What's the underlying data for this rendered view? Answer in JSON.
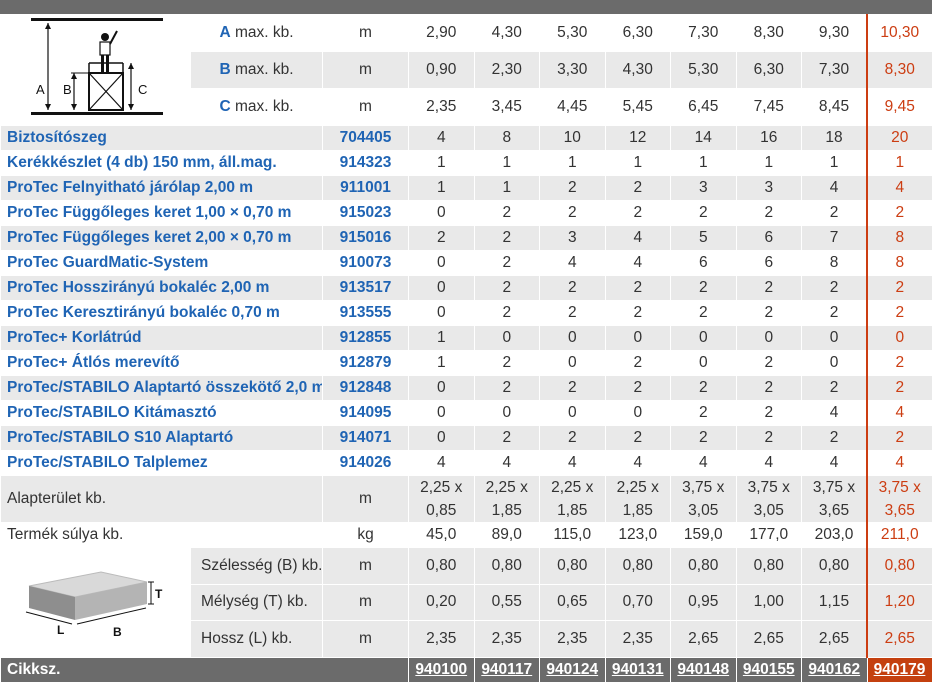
{
  "header_dims": [
    {
      "letter": "A",
      "suffix": " max. kb.",
      "unit": "m",
      "values": [
        "2,90",
        "4,30",
        "5,30",
        "6,30",
        "7,30",
        "8,30",
        "9,30",
        "10,30"
      ]
    },
    {
      "letter": "B",
      "suffix": " max. kb.",
      "unit": "m",
      "values": [
        "0,90",
        "2,30",
        "3,30",
        "4,30",
        "5,30",
        "6,30",
        "7,30",
        "8,30"
      ]
    },
    {
      "letter": "C",
      "suffix": " max. kb.",
      "unit": "m",
      "values": [
        "2,35",
        "3,45",
        "4,45",
        "5,45",
        "6,45",
        "7,45",
        "8,45",
        "9,45"
      ]
    }
  ],
  "scaffold_labels": {
    "a": "A",
    "b": "B",
    "c": "C"
  },
  "components": [
    {
      "name": "Biztosítószeg",
      "code": "704405",
      "values": [
        "4",
        "8",
        "10",
        "12",
        "14",
        "16",
        "18",
        "20"
      ]
    },
    {
      "name": "Kerékkészlet (4 db) 150 mm, áll.mag.",
      "code": "914323",
      "values": [
        "1",
        "1",
        "1",
        "1",
        "1",
        "1",
        "1",
        "1"
      ]
    },
    {
      "name": "ProTec Felnyitható járólap 2,00 m",
      "code": "911001",
      "values": [
        "1",
        "1",
        "2",
        "2",
        "3",
        "3",
        "4",
        "4"
      ]
    },
    {
      "name": "ProTec Függőleges keret 1,00 × 0,70 m",
      "code": "915023",
      "values": [
        "0",
        "2",
        "2",
        "2",
        "2",
        "2",
        "2",
        "2"
      ]
    },
    {
      "name": "ProTec Függőleges keret 2,00 × 0,70 m",
      "code": "915016",
      "values": [
        "2",
        "2",
        "3",
        "4",
        "5",
        "6",
        "7",
        "8"
      ]
    },
    {
      "name": "ProTec GuardMatic-System",
      "code": "910073",
      "values": [
        "0",
        "2",
        "4",
        "4",
        "6",
        "6",
        "8",
        "8"
      ]
    },
    {
      "name": "ProTec Hosszirányú bokaléc 2,00 m",
      "code": "913517",
      "values": [
        "0",
        "2",
        "2",
        "2",
        "2",
        "2",
        "2",
        "2"
      ]
    },
    {
      "name": "ProTec Keresztirányú bokaléc 0,70 m",
      "code": "913555",
      "values": [
        "0",
        "2",
        "2",
        "2",
        "2",
        "2",
        "2",
        "2"
      ]
    },
    {
      "name": "ProTec+ Korlátrúd",
      "code": "912855",
      "values": [
        "1",
        "0",
        "0",
        "0",
        "0",
        "0",
        "0",
        "0"
      ]
    },
    {
      "name": "ProTec+ Átlós merevítő",
      "code": "912879",
      "values": [
        "1",
        "2",
        "0",
        "2",
        "0",
        "2",
        "0",
        "2"
      ]
    },
    {
      "name": "ProTec/STABILO Alaptartó összekötő 2,0 m",
      "code": "912848",
      "values": [
        "0",
        "2",
        "2",
        "2",
        "2",
        "2",
        "2",
        "2"
      ]
    },
    {
      "name": "ProTec/STABILO Kitámasztó",
      "code": "914095",
      "values": [
        "0",
        "0",
        "0",
        "0",
        "2",
        "2",
        "4",
        "4"
      ]
    },
    {
      "name": "ProTec/STABILO S10 Alaptartó",
      "code": "914071",
      "values": [
        "0",
        "2",
        "2",
        "2",
        "2",
        "2",
        "2",
        "2"
      ]
    },
    {
      "name": "ProTec/STABILO Talplemez",
      "code": "914026",
      "values": [
        "4",
        "4",
        "4",
        "4",
        "4",
        "4",
        "4",
        "4"
      ]
    }
  ],
  "footprint": {
    "label": "Alapterület kb.",
    "unit": "m",
    "values": [
      [
        "2,25 x",
        "0,85"
      ],
      [
        "2,25 x",
        "1,85"
      ],
      [
        "2,25 x",
        "1,85"
      ],
      [
        "2,25 x",
        "1,85"
      ],
      [
        "3,75 x",
        "3,05"
      ],
      [
        "3,75 x",
        "3,05"
      ],
      [
        "3,75 x",
        "3,65"
      ],
      [
        "3,75 x",
        "3,65"
      ]
    ]
  },
  "weight": {
    "label": "Termék súlya kb.",
    "unit": "kg",
    "values": [
      "45,0",
      "89,0",
      "115,0",
      "123,0",
      "159,0",
      "177,0",
      "203,0",
      "211,0"
    ]
  },
  "package_dims": [
    {
      "label": "Szélesség (B) kb.",
      "unit": "m",
      "values": [
        "0,80",
        "0,80",
        "0,80",
        "0,80",
        "0,80",
        "0,80",
        "0,80",
        "0,80"
      ]
    },
    {
      "label": "Mélység (T) kb.",
      "unit": "m",
      "values": [
        "0,20",
        "0,55",
        "0,65",
        "0,70",
        "0,95",
        "1,00",
        "1,15",
        "1,20"
      ]
    },
    {
      "label": "Hossz (L) kb.",
      "unit": "m",
      "values": [
        "2,35",
        "2,35",
        "2,35",
        "2,35",
        "2,65",
        "2,65",
        "2,65",
        "2,65"
      ]
    }
  ],
  "box_labels": {
    "t": "T",
    "l": "L",
    "b": "B"
  },
  "footer": {
    "label": "Cikksz.",
    "articles": [
      "940100",
      "940117",
      "940124",
      "940131",
      "940148",
      "940155",
      "940162",
      "940179"
    ]
  },
  "colors": {
    "blue": "#1f64b4",
    "accent": "#cc3d12",
    "gray_bar": "#6b6b6b",
    "row_shade": "#e9e9e9"
  }
}
